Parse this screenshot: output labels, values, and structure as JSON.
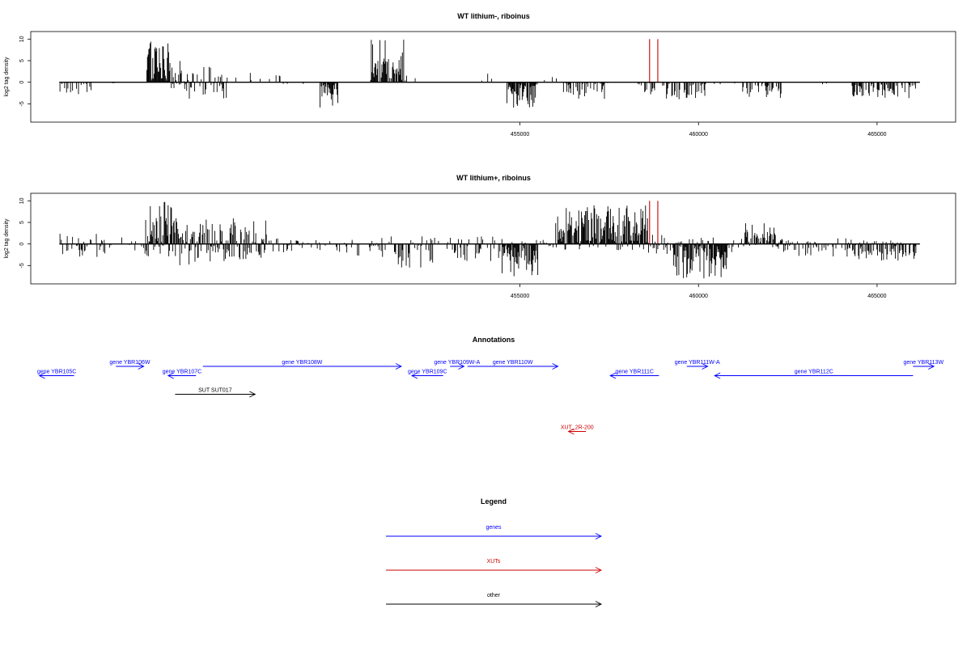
{
  "chart_data": [
    {
      "type": "bar",
      "title": "WT lithium-, riboinus",
      "ylabel": "log2 tag density",
      "xlim": [
        441300,
        467200
      ],
      "ylim": [
        -8.5,
        11
      ],
      "x_ticks": [
        "455000",
        "460000",
        "465000"
      ],
      "x_tick_values": [
        455000,
        460000,
        465000
      ],
      "y_ticks": [
        "-5",
        "0",
        "5",
        "10"
      ],
      "y_tick_values": [
        -5,
        0,
        5,
        10
      ],
      "signal_start": 442100,
      "signal_end": 466200,
      "highlight_x": [
        458630,
        458860
      ],
      "highlight_color": "#cc0000",
      "regions": [
        {
          "from": 442100,
          "to": 443000,
          "max": 0.5,
          "min": -2.8,
          "density": 0.25
        },
        {
          "from": 443300,
          "to": 444500,
          "max": 0.4,
          "min": -0.4,
          "density": 0.05
        },
        {
          "from": 444550,
          "to": 445200,
          "max": 10,
          "min": 0,
          "density": 1.0
        },
        {
          "from": 445200,
          "to": 445500,
          "max": 5,
          "min": -3,
          "density": 0.6
        },
        {
          "from": 445500,
          "to": 446800,
          "max": 4,
          "min": -4,
          "density": 0.45
        },
        {
          "from": 446800,
          "to": 448800,
          "max": 2.5,
          "min": -0.8,
          "density": 0.08
        },
        {
          "from": 448800,
          "to": 449400,
          "max": 0.8,
          "min": -0.8,
          "density": 0.05
        },
        {
          "from": 449400,
          "to": 449900,
          "max": 0.5,
          "min": -6,
          "density": 0.9
        },
        {
          "from": 449900,
          "to": 450400,
          "max": 0.5,
          "min": -0.5,
          "density": 0.02
        },
        {
          "from": 450400,
          "to": 450800,
          "max": 0.5,
          "min": -0.5,
          "density": 0.02
        },
        {
          "from": 450800,
          "to": 451750,
          "max": 10,
          "min": 0,
          "density": 0.85
        },
        {
          "from": 451750,
          "to": 452200,
          "max": 2,
          "min": -0.5,
          "density": 0.1
        },
        {
          "from": 453800,
          "to": 454600,
          "max": 2.5,
          "min": -0.5,
          "density": 0.1
        },
        {
          "from": 454600,
          "to": 455500,
          "max": 0.5,
          "min": -6,
          "density": 0.85
        },
        {
          "from": 455500,
          "to": 456200,
          "max": 3,
          "min": -0.5,
          "density": 0.08
        },
        {
          "from": 456200,
          "to": 457400,
          "max": 0.5,
          "min": -4,
          "density": 0.45
        },
        {
          "from": 457400,
          "to": 458400,
          "max": 0.5,
          "min": -0.5,
          "density": 0.02
        },
        {
          "from": 458400,
          "to": 460200,
          "max": 0.5,
          "min": -4,
          "density": 0.4
        },
        {
          "from": 460200,
          "to": 461200,
          "max": 0.5,
          "min": -0.5,
          "density": 0.02
        },
        {
          "from": 461200,
          "to": 462400,
          "max": 0.5,
          "min": -4,
          "density": 0.45
        },
        {
          "from": 462400,
          "to": 464300,
          "max": 0.5,
          "min": -0.5,
          "density": 0.02
        },
        {
          "from": 464300,
          "to": 466100,
          "max": 0.5,
          "min": -4,
          "density": 0.55
        }
      ]
    },
    {
      "type": "bar",
      "title": "WT lithium+, riboinus",
      "ylabel": "log2 tag density",
      "xlim": [
        441300,
        467200
      ],
      "ylim": [
        -8.5,
        11
      ],
      "x_ticks": [
        "455000",
        "460000",
        "465000"
      ],
      "x_tick_values": [
        455000,
        460000,
        465000
      ],
      "y_ticks": [
        "-5",
        "0",
        "5",
        "10"
      ],
      "y_tick_values": [
        -5,
        0,
        5,
        10
      ],
      "signal_start": 442100,
      "signal_end": 466200,
      "highlight_x": [
        458630,
        458860
      ],
      "highlight_color": "#cc0000",
      "regions": [
        {
          "from": 442100,
          "to": 443700,
          "max": 2.5,
          "min": -3,
          "density": 0.4
        },
        {
          "from": 443700,
          "to": 444500,
          "max": 1.5,
          "min": -1.5,
          "density": 0.15
        },
        {
          "from": 444500,
          "to": 445400,
          "max": 10,
          "min": -3,
          "density": 1.0
        },
        {
          "from": 445400,
          "to": 447900,
          "max": 6,
          "min": -5,
          "density": 0.75
        },
        {
          "from": 447900,
          "to": 449800,
          "max": 1.5,
          "min": -2,
          "density": 0.3
        },
        {
          "from": 449800,
          "to": 450300,
          "max": 1.2,
          "min": -2,
          "density": 0.25
        },
        {
          "from": 450300,
          "to": 451500,
          "max": 2,
          "min": -3,
          "density": 0.35
        },
        {
          "from": 451500,
          "to": 452700,
          "max": 2,
          "min": -6,
          "density": 0.45
        },
        {
          "from": 452700,
          "to": 454500,
          "max": 2,
          "min": -4,
          "density": 0.35
        },
        {
          "from": 454500,
          "to": 455500,
          "max": 1,
          "min": -8,
          "density": 0.95
        },
        {
          "from": 455500,
          "to": 456000,
          "max": 1.2,
          "min": -1.5,
          "density": 0.2
        },
        {
          "from": 456000,
          "to": 458600,
          "max": 9,
          "min": -1.5,
          "density": 0.95
        },
        {
          "from": 458600,
          "to": 459300,
          "max": 3,
          "min": -2.5,
          "density": 0.35
        },
        {
          "from": 459300,
          "to": 460800,
          "max": 1.5,
          "min": -8,
          "density": 0.95
        },
        {
          "from": 460800,
          "to": 461300,
          "max": 1.5,
          "min": -2,
          "density": 0.25
        },
        {
          "from": 461300,
          "to": 462200,
          "max": 5,
          "min": -1,
          "density": 0.7
        },
        {
          "from": 462200,
          "to": 464200,
          "max": 1.5,
          "min": -3,
          "density": 0.45
        },
        {
          "from": 464200,
          "to": 466100,
          "max": 1,
          "min": -4,
          "density": 0.55
        }
      ]
    }
  ],
  "annotations": {
    "title": "Annotations",
    "features": [
      {
        "label": "gene YBR105C",
        "from": 443100,
        "to": 442100,
        "row": 1,
        "color": "#0000ff"
      },
      {
        "label": "gene YBR106W",
        "from": 444300,
        "to": 445100,
        "row": 0,
        "color": "#0000ff"
      },
      {
        "label": "gene YBR107C",
        "from": 446600,
        "to": 445800,
        "row": 1,
        "color": "#0000ff"
      },
      {
        "label": "gene YBR108W",
        "from": 446800,
        "to": 452500,
        "row": 0,
        "color": "#0000ff"
      },
      {
        "label": "gene YBR109C",
        "from": 453700,
        "to": 452800,
        "row": 1,
        "color": "#0000ff"
      },
      {
        "label": "gene YBR109W-A",
        "from": 453900,
        "to": 454300,
        "row": 0,
        "color": "#0000ff"
      },
      {
        "label": "gene YBR110W",
        "from": 454400,
        "to": 457000,
        "row": 0,
        "color": "#0000ff"
      },
      {
        "label": "gene YBR111C",
        "from": 459900,
        "to": 458500,
        "row": 1,
        "color": "#0000ff"
      },
      {
        "label": "gene YBR111W-A",
        "from": 460700,
        "to": 461300,
        "row": 0,
        "color": "#0000ff"
      },
      {
        "label": "gene YBR112C",
        "from": 467200,
        "to": 461500,
        "row": 1,
        "color": "#0000ff"
      },
      {
        "label": "gene YBR113W",
        "from": 467200,
        "to": 467800,
        "row": 0,
        "color": "#0000ff"
      },
      {
        "label": "SUT SUT017",
        "from": 446000,
        "to": 448300,
        "row": 3,
        "color": "#000000"
      },
      {
        "label": "XUT_2R-200",
        "from": 457800,
        "to": 457300,
        "row": 7,
        "color": "#cc0000"
      }
    ]
  },
  "legend": {
    "title": "Legend",
    "items": [
      {
        "label": "genes",
        "color": "#0000ff"
      },
      {
        "label": "XUTs",
        "color": "#cc0000"
      },
      {
        "label": "other",
        "color": "#000000"
      }
    ]
  }
}
